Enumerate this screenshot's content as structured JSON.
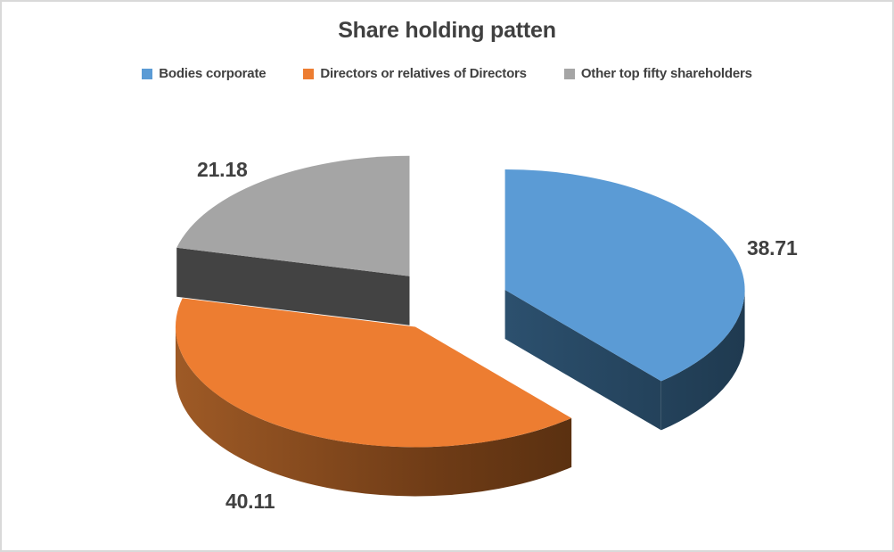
{
  "title": "Share holding patten",
  "chart_data": {
    "type": "pie",
    "style": "3d-exploded-pie",
    "title": "Share holding patten",
    "labels": [
      "Bodies corporate",
      "Directors or relatives of Directors",
      "Other top fifty shareholders"
    ],
    "values": [
      38.71,
      40.11,
      21.18
    ],
    "data_labels": [
      "38.71",
      "40.11",
      "21.18"
    ],
    "colors": [
      "#5B9BD5",
      "#ED7D31",
      "#A5A5A5"
    ],
    "side_colors": [
      [
        "#2C506E",
        "#1F3A50"
      ],
      [
        "#9E5A26",
        "#6E3B16",
        "#4E2A0D"
      ],
      [
        "#434343"
      ]
    ],
    "start_angle_deg": 0,
    "direction": "clockwise",
    "legend_position": "top",
    "background": "#FFFFFF",
    "text_color": "#404040"
  }
}
